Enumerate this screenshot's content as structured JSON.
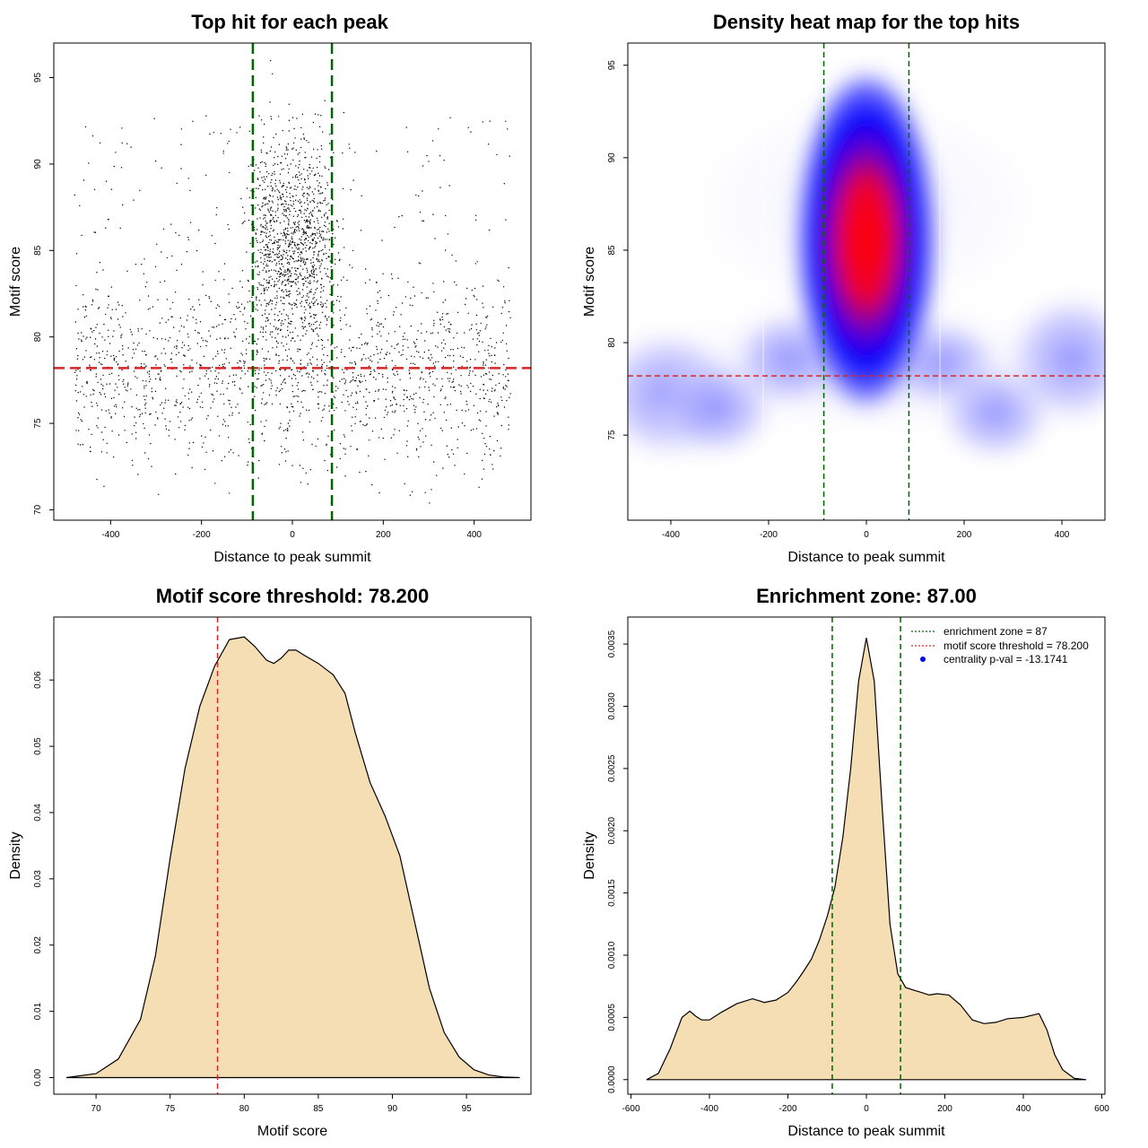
{
  "colors": {
    "threshold_line": "#d62728",
    "zone_line": "#006400",
    "density_fill": "#f5deb3",
    "point": "#000000",
    "heat_low": "#ffffff",
    "heat_mid": "#0000ff",
    "heat_high": "#ff0000",
    "legend_dot": "#0000ff"
  },
  "chart_data": [
    {
      "type": "scatter",
      "title": "Top hit for each peak",
      "xlabel": "Distance to peak summit",
      "ylabel": "Motif score",
      "xlim": [
        -525,
        525
      ],
      "ylim": [
        69.4,
        97.0
      ],
      "xticks": [
        -400,
        -200,
        0,
        200,
        400
      ],
      "yticks": [
        70,
        75,
        80,
        85,
        90,
        95
      ],
      "hline": 78.2,
      "vlines": [
        -87,
        87
      ],
      "point_count": 3000,
      "distribution": {
        "background_x_range": [
          -480,
          480
        ],
        "background_score_range": [
          71,
          82
        ],
        "central_x_range": [
          -87,
          87
        ],
        "central_score_mean": 85.3
      }
    },
    {
      "type": "heatmap",
      "title": "Density heat map for the top hits",
      "xlabel": "Distance to peak summit",
      "ylabel": "Motif score",
      "xlim": [
        -488,
        488
      ],
      "ylim": [
        70.4,
        96.2
      ],
      "xticks": [
        -400,
        -200,
        0,
        200,
        400
      ],
      "yticks": [
        75,
        80,
        85,
        90,
        95
      ],
      "hline": 78.2,
      "vlines": [
        -87,
        87
      ],
      "peak": {
        "x": 0,
        "y": 85.5
      },
      "color_scale": [
        "white",
        "blue",
        "red"
      ]
    },
    {
      "type": "area",
      "title": "Motif score threshold: 78.200",
      "xlabel": "Motif score",
      "ylabel": "Density",
      "xlim": [
        67.15,
        99.35
      ],
      "ylim": [
        -0.0025,
        0.0695
      ],
      "xticks": [
        70,
        75,
        80,
        85,
        90,
        95
      ],
      "yticks": [
        "0.00",
        "0.01",
        "0.02",
        "0.03",
        "0.04",
        "0.05",
        "0.06"
      ],
      "vline": 78.2,
      "x": [
        68.0,
        70.0,
        71.5,
        73.0,
        74.0,
        75.0,
        76.0,
        77.0,
        78.0,
        79.0,
        80.0,
        80.7,
        81.5,
        82.0,
        82.5,
        83.0,
        83.5,
        84.0,
        85.0,
        86.0,
        86.8,
        87.5,
        88.5,
        89.5,
        90.5,
        91.5,
        92.5,
        93.5,
        94.5,
        95.5,
        96.5,
        97.5,
        98.6
      ],
      "y": [
        0.0,
        0.0006,
        0.0028,
        0.0088,
        0.0183,
        0.0331,
        0.0466,
        0.056,
        0.0621,
        0.0661,
        0.0665,
        0.0651,
        0.063,
        0.0625,
        0.0633,
        0.0645,
        0.0645,
        0.0638,
        0.0625,
        0.0608,
        0.058,
        0.052,
        0.0445,
        0.0395,
        0.0335,
        0.0235,
        0.0135,
        0.0068,
        0.0031,
        0.0012,
        0.0004,
        0.0001,
        0.0
      ]
    },
    {
      "type": "area",
      "title": "Enrichment zone: 87.00",
      "xlabel": "Distance to peak summit",
      "ylabel": "Density",
      "xlim": [
        -608,
        608
      ],
      "ylim": [
        -0.000117,
        0.003717
      ],
      "xticks": [
        -600,
        -400,
        -200,
        0,
        200,
        400,
        600
      ],
      "yticks": [
        "0.0000",
        "0.0005",
        "0.0010",
        "0.0015",
        "0.0020",
        "0.0025",
        "0.0030",
        "0.0035"
      ],
      "vlines": [
        -87,
        87
      ],
      "x": [
        -560,
        -530,
        -500,
        -470,
        -450,
        -435,
        -420,
        -400,
        -370,
        -330,
        -290,
        -260,
        -230,
        -200,
        -180,
        -160,
        -140,
        -120,
        -100,
        -80,
        -60,
        -40,
        -20,
        0,
        20,
        40,
        60,
        80,
        100,
        120,
        140,
        160,
        180,
        210,
        240,
        270,
        300,
        330,
        360,
        400,
        440,
        460,
        480,
        500,
        530,
        560
      ],
      "y": [
        0.0,
        5e-05,
        0.00025,
        0.0005,
        0.00055,
        0.00051,
        0.00048,
        0.00048,
        0.00054,
        0.00061,
        0.00065,
        0.00062,
        0.00064,
        0.0007,
        0.00078,
        0.00087,
        0.00097,
        0.00112,
        0.00131,
        0.00155,
        0.00195,
        0.0025,
        0.0032,
        0.00355,
        0.0032,
        0.0022,
        0.00125,
        0.00085,
        0.00074,
        0.00072,
        0.0007,
        0.00068,
        0.00069,
        0.00068,
        0.0006,
        0.00048,
        0.00045,
        0.00046,
        0.00049,
        0.0005,
        0.00053,
        0.0004,
        0.0002,
        8e-05,
        1e-05,
        0.0
      ],
      "legend": [
        {
          "label": "enrichment zone = 87",
          "style": "dotted",
          "color": "#006400"
        },
        {
          "label": "motif score threshold = 78.200",
          "style": "dotted",
          "color": "#d62728"
        },
        {
          "label": "centrality p-val = -13.1741",
          "style": "dot",
          "color": "#0000ff"
        }
      ]
    }
  ]
}
